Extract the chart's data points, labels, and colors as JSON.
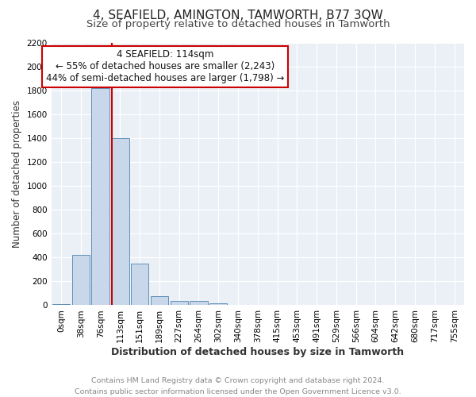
{
  "title": "4, SEAFIELD, AMINGTON, TAMWORTH, B77 3QW",
  "subtitle": "Size of property relative to detached houses in Tamworth",
  "xlabel": "Distribution of detached houses by size in Tamworth",
  "ylabel": "Number of detached properties",
  "categories": [
    "0sqm",
    "38sqm",
    "76sqm",
    "113sqm",
    "151sqm",
    "189sqm",
    "227sqm",
    "264sqm",
    "302sqm",
    "340sqm",
    "378sqm",
    "415sqm",
    "453sqm",
    "491sqm",
    "529sqm",
    "566sqm",
    "604sqm",
    "642sqm",
    "680sqm",
    "717sqm",
    "755sqm"
  ],
  "values": [
    10,
    425,
    1820,
    1400,
    350,
    75,
    35,
    35,
    15,
    0,
    0,
    0,
    0,
    0,
    0,
    0,
    0,
    0,
    0,
    0,
    0
  ],
  "bar_color": "#c8d8ea",
  "bar_edge_color": "#6090b8",
  "vline_color": "#cc0000",
  "vline_pos": 2.57,
  "annotation_text": "4 SEAFIELD: 114sqm\n← 55% of detached houses are smaller (2,243)\n44% of semi-detached houses are larger (1,798) →",
  "annotation_box_color": "#ffffff",
  "annotation_box_edge": "#cc0000",
  "ylim": [
    0,
    2200
  ],
  "yticks": [
    0,
    200,
    400,
    600,
    800,
    1000,
    1200,
    1400,
    1600,
    1800,
    2000,
    2200
  ],
  "footer_line1": "Contains HM Land Registry data © Crown copyright and database right 2024.",
  "footer_line2": "Contains public sector information licensed under the Open Government Licence v3.0.",
  "bg_color": "#eaf0f6",
  "grid_color": "#ffffff",
  "title_fontsize": 11,
  "subtitle_fontsize": 9.5,
  "tick_fontsize": 7.5,
  "ylabel_fontsize": 8.5,
  "xlabel_fontsize": 9,
  "footer_fontsize": 6.8,
  "ann_fontsize": 8.5
}
